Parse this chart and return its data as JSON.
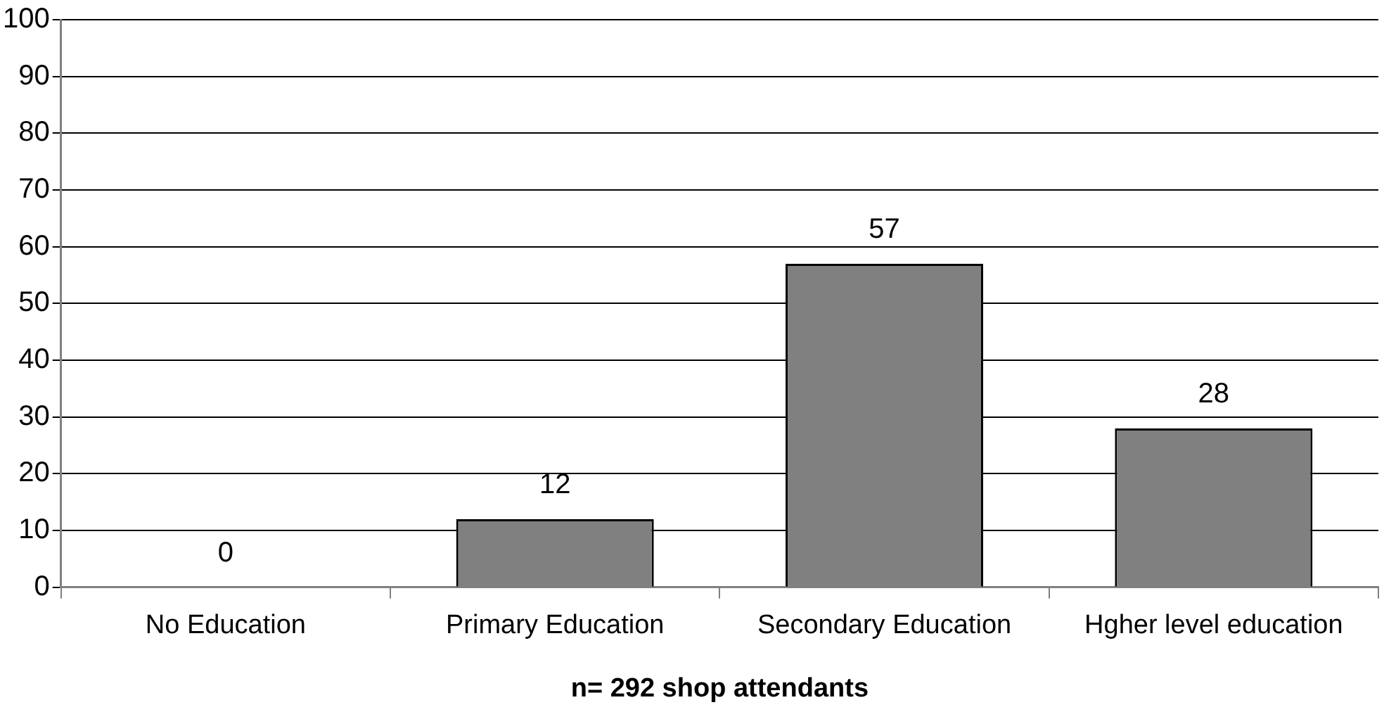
{
  "chart_data": {
    "type": "bar",
    "xlabel": "n= 292 shop attendants",
    "categories": [
      "No Education",
      "Primary Education",
      "Secondary Education",
      "Hgher level education"
    ],
    "values": [
      0,
      12,
      57,
      28
    ],
    "color": "#808080",
    "ylim": [
      0,
      100
    ],
    "yticks": [
      0,
      10,
      20,
      30,
      40,
      50,
      60,
      70,
      80,
      90,
      100
    ],
    "grid": "y",
    "data_labels": true,
    "legend": false
  }
}
